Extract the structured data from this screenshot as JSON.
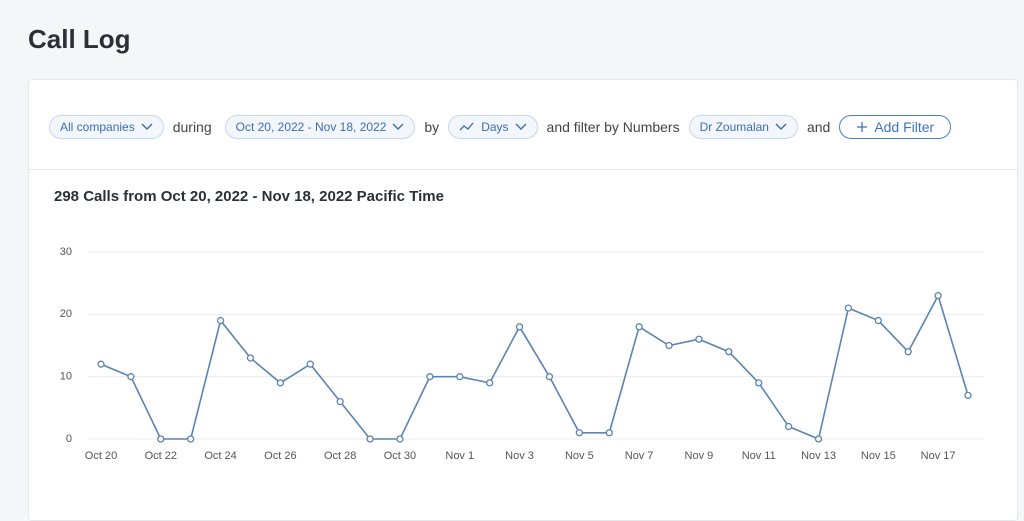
{
  "header": {
    "title": "Call Log"
  },
  "filters": {
    "companies": "All companies",
    "during": "during",
    "range": "Oct 20, 2022 - Nov 18, 2022",
    "by": "by",
    "interval": "Days",
    "filter_by": "and filter by Numbers",
    "number": "Dr Zoumalan",
    "and": "and",
    "add": "Add Filter"
  },
  "chart_data": {
    "type": "line",
    "title": "298 Calls from Oct 20, 2022 - Nov 18, 2022 Pacific Time",
    "categories": [
      "Oct 20",
      null,
      "Oct 22",
      null,
      "Oct 24",
      null,
      "Oct 26",
      null,
      "Oct 28",
      null,
      "Oct 30",
      null,
      "Nov 1",
      null,
      "Nov 3",
      null,
      "Nov 5",
      null,
      "Nov 7",
      null,
      "Nov 9",
      null,
      "Nov 11",
      null,
      "Nov 13",
      null,
      "Nov 15",
      null,
      "Nov 17",
      null
    ],
    "values": [
      12,
      10,
      0,
      0,
      19,
      13,
      9,
      12,
      6,
      0,
      0,
      10,
      10,
      9,
      18,
      10,
      1,
      1,
      18,
      15,
      16,
      14,
      9,
      2,
      0,
      21,
      19,
      14,
      23,
      7
    ],
    "color": "#5b84b1",
    "ylim": [
      0,
      30
    ],
    "yticks": [
      0,
      10,
      20,
      30
    ],
    "grid": true
  }
}
